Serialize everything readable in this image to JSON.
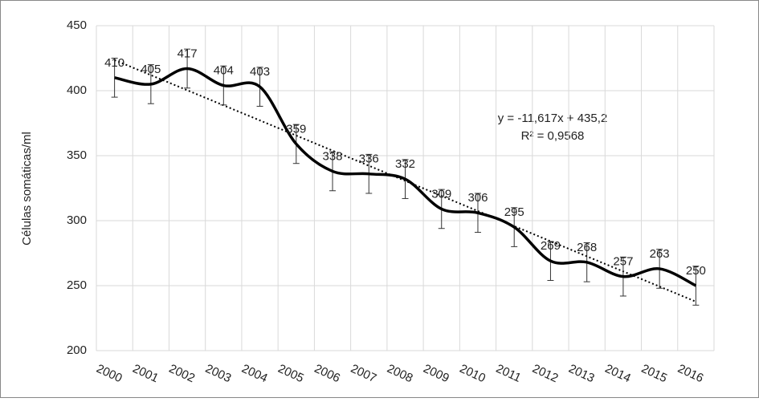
{
  "chart_data": {
    "type": "line",
    "y_label": "Células somáticas/ml",
    "categories": [
      "2000",
      "2001",
      "2002",
      "2003",
      "2004",
      "2005",
      "2006",
      "2007",
      "2008",
      "2009",
      "2010",
      "2011",
      "2012",
      "2013",
      "2014",
      "2015",
      "2016"
    ],
    "series": [
      {
        "name": "Células somáticas/ml",
        "color": "#000000",
        "values": [
          410,
          405,
          417,
          404,
          403,
          359,
          338,
          336,
          332,
          309,
          306,
          295,
          269,
          268,
          257,
          263,
          250
        ],
        "errors": [
          15,
          15,
          15,
          15,
          15,
          15,
          15,
          15,
          15,
          15,
          15,
          15,
          15,
          15,
          15,
          15,
          15
        ]
      }
    ],
    "trendline": {
      "slope": -11.617,
      "intercept": 435.2,
      "equation": "y = -11,617x + 435,2",
      "r2": "R² = 0,9568"
    },
    "ylim": [
      200,
      450
    ],
    "yticks": [
      200,
      250,
      300,
      350,
      400,
      450
    ],
    "grid": true
  }
}
